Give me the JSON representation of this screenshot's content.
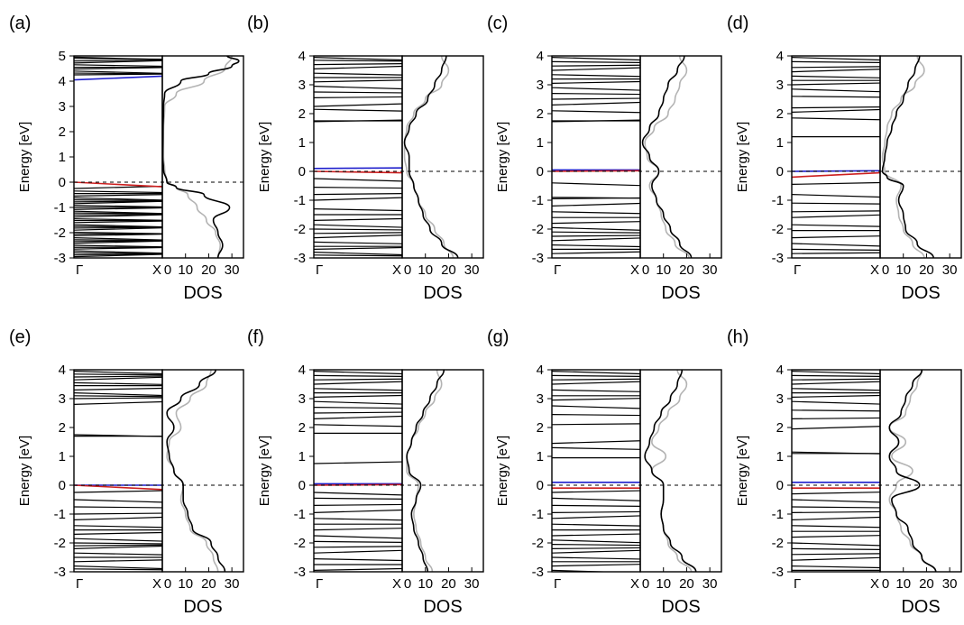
{
  "figure": {
    "shared": {
      "ylabel": "Energy [eV]",
      "band_xticks": [
        "Γ",
        "X"
      ],
      "dos_xticks": [
        "0",
        "10",
        "20",
        "30"
      ],
      "dos_xlabel": "DOS",
      "fermi_level": 0
    },
    "colors": {
      "band": "#000000",
      "dos_total": "#000000",
      "dos_reference": "#b3b3b3",
      "band_highlight_blue": "#1f1fcc",
      "band_highlight_red": "#cc1f1f",
      "fermi_line": "#000000"
    }
  },
  "chart_data": [
    {
      "panel": "(a)",
      "type": "line",
      "ylim": [
        -3,
        5
      ],
      "yticks": [
        -3,
        -2,
        -1,
        0,
        1,
        2,
        3,
        4,
        5
      ],
      "dos_xlim": [
        0,
        35
      ],
      "bands": [
        4.95,
        4.9,
        4.8,
        4.72,
        4.65,
        4.55,
        4.48,
        4.4,
        4.32,
        4.25,
        -0.25,
        -0.35,
        -0.45,
        -0.55,
        -0.62,
        -0.7,
        -0.78,
        -0.85,
        -0.92,
        -1.0,
        -1.08,
        -1.15,
        -1.22,
        -1.3,
        -1.38,
        -1.45,
        -1.52,
        -1.6,
        -1.68,
        -1.75,
        -1.82,
        -1.9,
        -1.98,
        -2.05,
        -2.12,
        -2.2,
        -2.28,
        -2.35,
        -2.42,
        -2.5,
        -2.58,
        -2.65,
        -2.72,
        -2.8,
        -2.88,
        -2.95
      ],
      "highlight_blue": [
        [
          4.05,
          4.2
        ]
      ],
      "highlight_red": [
        [
          0.0,
          -0.18
        ]
      ],
      "dos_total": {
        "energy": [
          -3,
          -2.5,
          -2,
          -1.5,
          -1.0,
          -0.5,
          -0.2,
          0,
          0.5,
          1,
          2,
          3,
          3.5,
          4,
          4.3,
          4.6,
          4.8,
          5
        ],
        "values": [
          24,
          26,
          24,
          22,
          29,
          18,
          6,
          2,
          0.5,
          0.2,
          0.3,
          0.5,
          1,
          8,
          20,
          30,
          33,
          28
        ]
      },
      "dos_reference": {
        "energy": [
          -3,
          -2.5,
          -2,
          -1.5,
          -1,
          -0.5,
          -0.2,
          0,
          0.5,
          1,
          2,
          3,
          3.5,
          4,
          4.5,
          5
        ],
        "values": [
          24,
          25,
          23,
          19,
          15,
          11,
          6,
          2,
          1,
          0.5,
          0.5,
          1,
          6,
          18,
          27,
          30
        ]
      }
    },
    {
      "panel": "(b)",
      "type": "line",
      "ylim": [
        -3,
        4
      ],
      "yticks": [
        -3,
        -2,
        -1,
        0,
        1,
        2,
        3,
        4
      ],
      "dos_xlim": [
        0,
        35
      ],
      "bands": [
        3.95,
        3.85,
        3.7,
        3.55,
        3.4,
        3.25,
        3.1,
        2.95,
        2.75,
        2.55,
        2.25,
        2.15,
        1.75,
        1.72,
        -0.25,
        -0.55,
        -0.8,
        -1.0,
        -1.3,
        -1.5,
        -1.7,
        -1.85,
        -2.0,
        -2.15,
        -2.3,
        -2.45,
        -2.6,
        -2.7,
        -2.8,
        -2.9
      ],
      "highlight_blue": [
        [
          0.1,
          0.12
        ]
      ],
      "highlight_red": [
        [
          0.0,
          -0.05
        ]
      ],
      "dos_total": {
        "energy": [
          -3,
          -2.5,
          -2,
          -1.5,
          -1,
          -0.5,
          0,
          0.5,
          1,
          1.5,
          2,
          2.5,
          3,
          3.5,
          4
        ],
        "values": [
          24,
          17,
          12,
          9,
          7,
          5,
          3,
          3,
          1,
          3,
          6,
          11,
          14,
          17,
          19
        ]
      },
      "dos_reference": {
        "energy": [
          -3,
          -2.5,
          -2,
          -1.5,
          -1,
          -0.5,
          0,
          0.5,
          1,
          1.5,
          2,
          2.5,
          3,
          3.5,
          4
        ],
        "values": [
          22,
          18,
          14,
          10,
          7,
          5,
          2,
          1,
          1,
          2,
          5,
          10,
          17,
          20,
          17
        ]
      }
    },
    {
      "panel": "(c)",
      "type": "line",
      "ylim": [
        -3,
        4
      ],
      "yticks": [
        -3,
        -2,
        -1,
        0,
        1,
        2,
        3,
        4
      ],
      "dos_xlim": [
        0,
        35
      ],
      "bands": [
        3.95,
        3.8,
        3.65,
        3.5,
        3.35,
        3.2,
        3.05,
        2.9,
        2.7,
        2.5,
        2.3,
        2.1,
        1.75,
        1.72,
        -0.4,
        -0.9,
        -0.95,
        -1.2,
        -1.4,
        -1.6,
        -1.8,
        -1.95,
        -2.1,
        -2.25,
        -2.4,
        -2.55,
        -2.7,
        -2.85
      ],
      "highlight_blue": [
        [
          0.05,
          0.05
        ]
      ],
      "highlight_red": [
        [
          0.0,
          0.02
        ]
      ],
      "dos_total": {
        "energy": [
          -3,
          -2.5,
          -2,
          -1.5,
          -1,
          -0.5,
          0,
          0.5,
          1,
          1.5,
          2,
          2.5,
          3,
          3.5,
          4
        ],
        "values": [
          22,
          17,
          13,
          10,
          7,
          5,
          8,
          4,
          1,
          4,
          8,
          10,
          12,
          16,
          19
        ]
      },
      "dos_reference": {
        "energy": [
          -3,
          -2.5,
          -2,
          -1.5,
          -1,
          -0.5,
          0,
          0.5,
          1,
          1.5,
          2,
          2.5,
          3,
          3.5,
          4
        ],
        "values": [
          21,
          15,
          11,
          9,
          7,
          4,
          8,
          3,
          2,
          6,
          12,
          15,
          17,
          20,
          17
        ]
      }
    },
    {
      "panel": "(d)",
      "type": "line",
      "ylim": [
        -3,
        4
      ],
      "yticks": [
        -3,
        -2,
        -1,
        0,
        1,
        2,
        3,
        4
      ],
      "dos_xlim": [
        0,
        35
      ],
      "bands": [
        3.95,
        3.8,
        3.6,
        3.45,
        3.3,
        3.15,
        3.0,
        2.85,
        2.6,
        2.2,
        2.05,
        1.85,
        1.2,
        -0.45,
        -0.8,
        -1.1,
        -1.4,
        -1.6,
        -1.85,
        -2.05,
        -2.3,
        -2.5,
        -2.7,
        -2.85
      ],
      "highlight_blue": [
        [
          0.0,
          0.02
        ]
      ],
      "highlight_red": [
        [
          -0.2,
          -0.05
        ]
      ],
      "dos_total": {
        "energy": [
          -3,
          -2.5,
          -2,
          -1.5,
          -1,
          -0.5,
          -0.2,
          0,
          0.5,
          1,
          1.5,
          2,
          2.5,
          3,
          3.5,
          4
        ],
        "values": [
          23,
          16,
          11,
          10,
          8,
          10,
          3,
          1,
          2,
          3,
          5,
          7,
          10,
          12,
          15,
          17
        ]
      },
      "dos_reference": {
        "energy": [
          -3,
          -2.5,
          -2,
          -1.5,
          -1,
          -0.5,
          0,
          0.5,
          1,
          1.5,
          2,
          2.5,
          3,
          3.5,
          4
        ],
        "values": [
          19,
          14,
          10,
          8,
          7,
          9,
          2,
          1,
          2,
          3,
          5,
          9,
          15,
          19,
          16
        ]
      }
    },
    {
      "panel": "(e)",
      "type": "line",
      "ylim": [
        -3,
        4
      ],
      "yticks": [
        -3,
        -2,
        -1,
        0,
        1,
        2,
        3,
        4
      ],
      "dos_xlim": [
        0,
        35
      ],
      "bands": [
        3.95,
        3.85,
        3.75,
        3.65,
        3.55,
        3.45,
        3.3,
        3.2,
        3.1,
        3.0,
        2.8,
        1.75,
        1.7,
        -0.25,
        -0.5,
        -0.75,
        -1.0,
        -1.2,
        -1.4,
        -1.55,
        -1.7,
        -1.85,
        -2.0,
        -2.1,
        -2.2,
        -2.35,
        -2.5,
        -2.65,
        -2.8,
        -2.9
      ],
      "highlight_blue": [
        [
          0.0,
          0.0
        ]
      ],
      "highlight_red": [
        [
          0.0,
          -0.15
        ]
      ],
      "dos_total": {
        "energy": [
          -3,
          -2.5,
          -2,
          -1.5,
          -1,
          -0.5,
          0,
          0.5,
          1,
          1.5,
          2,
          2.5,
          3,
          3.5,
          4
        ],
        "values": [
          27,
          24,
          21,
          13,
          11,
          9,
          9,
          5,
          3,
          2,
          5,
          2,
          8,
          16,
          23
        ]
      },
      "dos_reference": {
        "energy": [
          -3,
          -2.5,
          -2,
          -1.5,
          -1,
          -0.5,
          0,
          0.5,
          1,
          1.5,
          2,
          2.5,
          3,
          3.5,
          4
        ],
        "values": [
          24,
          22,
          19,
          12,
          10,
          8,
          9,
          5,
          2,
          3,
          8,
          6,
          12,
          19,
          21
        ]
      }
    },
    {
      "panel": "(f)",
      "type": "line",
      "ylim": [
        -3,
        4
      ],
      "yticks": [
        -3,
        -2,
        -1,
        0,
        1,
        2,
        3,
        4
      ],
      "dos_xlim": [
        0,
        35
      ],
      "bands": [
        3.95,
        3.8,
        3.65,
        3.5,
        3.35,
        3.2,
        3.05,
        2.9,
        2.7,
        2.5,
        2.3,
        2.1,
        1.8,
        0.75,
        -0.25,
        -0.45,
        -0.7,
        -0.95,
        -1.15,
        -1.35,
        -1.55,
        -1.75,
        -1.95,
        -2.15,
        -2.35,
        -2.55,
        -2.75,
        -2.95
      ],
      "highlight_blue": [
        [
          0.05,
          0.05
        ]
      ],
      "highlight_red": [
        [
          0.0,
          0.02
        ]
      ],
      "dos_total": {
        "energy": [
          -3,
          -2.5,
          -2,
          -1.5,
          -1,
          -0.5,
          0,
          0.5,
          1,
          1.5,
          2,
          2.5,
          3,
          3.5,
          4
        ],
        "values": [
          11,
          9,
          7,
          5,
          4,
          6,
          8,
          3,
          2,
          4,
          6,
          9,
          12,
          15,
          18
        ]
      },
      "dos_reference": {
        "energy": [
          -3,
          -2.5,
          -2,
          -1.5,
          -1,
          -0.5,
          0,
          0.5,
          1,
          1.5,
          2,
          2.5,
          3,
          3.5,
          4
        ],
        "values": [
          13,
          10,
          8,
          6,
          5,
          6,
          7,
          2,
          2,
          4,
          7,
          10,
          14,
          17,
          15
        ]
      }
    },
    {
      "panel": "(g)",
      "type": "line",
      "ylim": [
        -3,
        4
      ],
      "yticks": [
        -3,
        -2,
        -1,
        0,
        1,
        2,
        3,
        4
      ],
      "dos_xlim": [
        0,
        35
      ],
      "bands": [
        3.95,
        3.8,
        3.65,
        3.5,
        3.3,
        3.1,
        2.95,
        2.75,
        2.45,
        2.1,
        1.45,
        1.3,
        0.95,
        -0.25,
        -0.45,
        -0.7,
        -0.95,
        -1.15,
        -1.35,
        -1.55,
        -1.75,
        -1.9,
        -2.05,
        -2.2,
        -2.35,
        -2.5,
        -2.65,
        -2.8,
        -2.95
      ],
      "highlight_blue": [
        [
          0.1,
          0.1
        ]
      ],
      "highlight_red": [
        [
          -0.1,
          -0.1
        ]
      ],
      "dos_total": {
        "energy": [
          -3,
          -2.5,
          -2,
          -1.5,
          -1,
          -0.5,
          0,
          0.5,
          1,
          1.5,
          2,
          2.5,
          3,
          3.5,
          4
        ],
        "values": [
          24,
          18,
          13,
          10,
          9,
          10,
          10,
          5,
          2,
          4,
          6,
          9,
          13,
          16,
          18
        ]
      },
      "dos_reference": {
        "energy": [
          -3,
          -2.5,
          -2,
          -1.5,
          -1,
          -0.5,
          0,
          0.5,
          1,
          1.5,
          2,
          2.5,
          3,
          3.5,
          4
        ],
        "values": [
          22,
          16,
          12,
          10,
          9,
          10,
          10,
          5,
          11,
          5,
          8,
          12,
          17,
          20,
          16
        ]
      }
    },
    {
      "panel": "(h)",
      "type": "line",
      "ylim": [
        -3,
        4
      ],
      "yticks": [
        -3,
        -2,
        -1,
        0,
        1,
        2,
        3,
        4
      ],
      "dos_xlim": [
        0,
        35
      ],
      "bands": [
        3.95,
        3.8,
        3.65,
        3.5,
        3.35,
        3.2,
        3.05,
        2.9,
        2.6,
        2.3,
        1.95,
        1.15,
        1.1,
        -0.3,
        -0.5,
        -0.75,
        -0.95,
        -1.2,
        -1.4,
        -1.6,
        -1.8,
        -2.0,
        -2.2,
        -2.4,
        -2.6,
        -2.8,
        -2.95
      ],
      "highlight_blue": [
        [
          0.1,
          0.1
        ]
      ],
      "highlight_red": [
        [
          -0.1,
          -0.1
        ]
      ],
      "dos_total": {
        "energy": [
          -3,
          -2.5,
          -2,
          -1.5,
          -1,
          -0.5,
          0,
          0.5,
          1,
          1.5,
          2,
          2.5,
          3,
          3.5,
          4
        ],
        "values": [
          24,
          18,
          14,
          12,
          7,
          5,
          17,
          7,
          4,
          8,
          4,
          9,
          11,
          14,
          18
        ]
      },
      "dos_reference": {
        "energy": [
          -3,
          -2.5,
          -2,
          -1.5,
          -1,
          -0.5,
          0,
          0.5,
          1,
          1.5,
          2,
          2.5,
          3,
          3.5,
          4
        ],
        "values": [
          24,
          18,
          13,
          9,
          7,
          4,
          7,
          14,
          5,
          11,
          4,
          11,
          13,
          16,
          18
        ]
      }
    }
  ]
}
